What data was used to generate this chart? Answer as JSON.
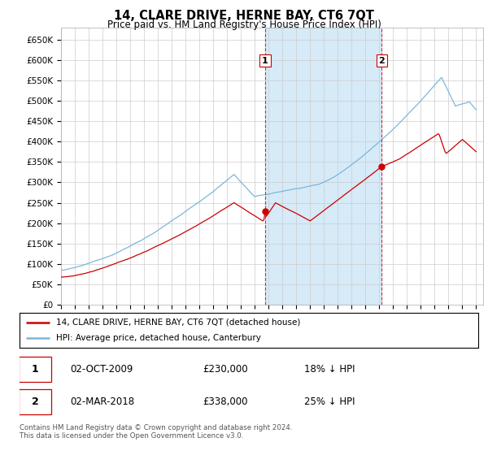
{
  "title": "14, CLARE DRIVE, HERNE BAY, CT6 7QT",
  "subtitle": "Price paid vs. HM Land Registry's House Price Index (HPI)",
  "ylabel_ticks": [
    "£0",
    "£50K",
    "£100K",
    "£150K",
    "£200K",
    "£250K",
    "£300K",
    "£350K",
    "£400K",
    "£450K",
    "£500K",
    "£550K",
    "£600K",
    "£650K"
  ],
  "ylim": [
    0,
    680000
  ],
  "ytick_values": [
    0,
    50000,
    100000,
    150000,
    200000,
    250000,
    300000,
    350000,
    400000,
    450000,
    500000,
    550000,
    600000,
    650000
  ],
  "sale1": {
    "date_num": 2009.75,
    "price": 230000,
    "label": "1"
  },
  "sale2": {
    "date_num": 2018.17,
    "price": 338000,
    "label": "2"
  },
  "legend_line1": "14, CLARE DRIVE, HERNE BAY, CT6 7QT (detached house)",
  "legend_line2": "HPI: Average price, detached house, Canterbury",
  "table_row1": [
    "1",
    "02-OCT-2009",
    "£230,000",
    "18% ↓ HPI"
  ],
  "table_row2": [
    "2",
    "02-MAR-2018",
    "£338,000",
    "25% ↓ HPI"
  ],
  "footer": "Contains HM Land Registry data © Crown copyright and database right 2024.\nThis data is licensed under the Open Government Licence v3.0.",
  "hpi_color": "#7ab8d8",
  "hpi_fill_color": "#d6eaf8",
  "price_color": "#cc0000",
  "vline_color": "#cc0000",
  "background_color": "#ffffff",
  "chart_bg": "#ffffff"
}
